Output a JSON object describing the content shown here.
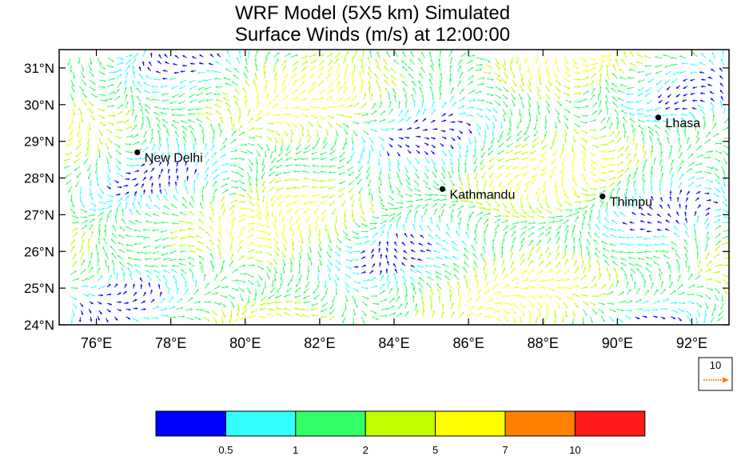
{
  "title": {
    "line1": "WRF Model (5X5 km) Simulated",
    "line2": "Surface Winds (m/s) at 12:00:00"
  },
  "map": {
    "lon_range": [
      75,
      93
    ],
    "lat_range": [
      24,
      31.5
    ],
    "lon_ticks": [
      {
        "value": 76,
        "label": "76°E"
      },
      {
        "value": 78,
        "label": "78°E"
      },
      {
        "value": 80,
        "label": "80°E"
      },
      {
        "value": 82,
        "label": "82°E"
      },
      {
        "value": 84,
        "label": "84°E"
      },
      {
        "value": 86,
        "label": "86°E"
      },
      {
        "value": 88,
        "label": "88°E"
      },
      {
        "value": 90,
        "label": "90°E"
      },
      {
        "value": 92,
        "label": "92°E"
      }
    ],
    "lat_ticks": [
      {
        "value": 24,
        "label": "24°N"
      },
      {
        "value": 25,
        "label": "25°N"
      },
      {
        "value": 26,
        "label": "26°N"
      },
      {
        "value": 27,
        "label": "27°N"
      },
      {
        "value": 28,
        "label": "28°N"
      },
      {
        "value": 29,
        "label": "29°N"
      },
      {
        "value": 30,
        "label": "30°N"
      },
      {
        "value": 31,
        "label": "31°N"
      }
    ],
    "cities": [
      {
        "name": "New Delhi",
        "lon": 77.1,
        "lat": 28.7
      },
      {
        "name": "Kathmandu",
        "lon": 85.3,
        "lat": 27.7
      },
      {
        "name": "Thimpu",
        "lon": 89.6,
        "lat": 27.5
      },
      {
        "name": "Lhasa",
        "lon": 91.1,
        "lat": 29.65
      }
    ]
  },
  "reference_vector": {
    "label": "10",
    "color": "#ff7f00"
  },
  "colorbar": {
    "colors": [
      "#0000ff",
      "#33ffff",
      "#33ff66",
      "#bfff00",
      "#ffff00",
      "#ff7f00",
      "#ff1a1a"
    ],
    "labels": [
      "0.5",
      "1",
      "2",
      "5",
      "7",
      "10"
    ]
  }
}
